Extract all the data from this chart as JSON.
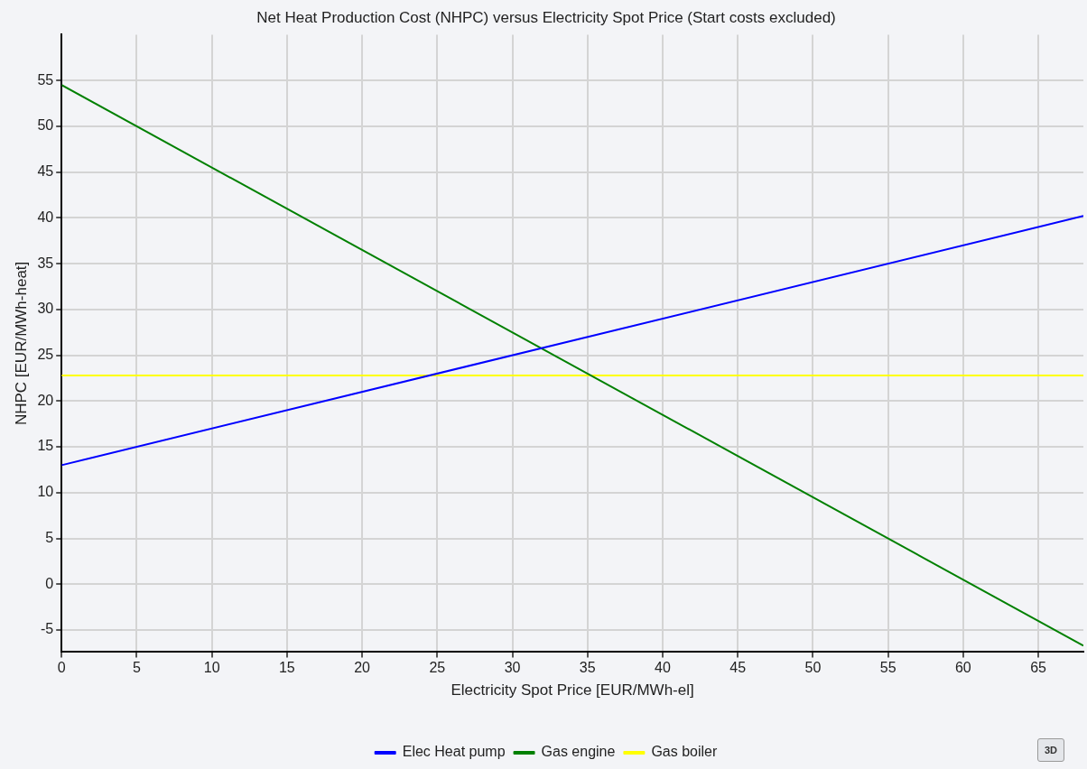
{
  "chart_data": {
    "type": "line",
    "title": "Net Heat Production Cost (NHPC) versus Electricity Spot Price (Start costs excluded)",
    "xlabel": "Electricity Spot Price [EUR/MWh-el]",
    "ylabel": "NHPC [EUR/MWh-heat]",
    "x": [
      0,
      68
    ],
    "series": [
      {
        "name": "Elec Heat pump",
        "color": "#0000ff",
        "values": [
          13,
          40.2
        ]
      },
      {
        "name": "Gas engine",
        "color": "#008000",
        "values": [
          54.5,
          -6.7
        ]
      },
      {
        "name": "Gas boiler",
        "color": "#ffff00",
        "values": [
          22.8,
          22.8
        ]
      }
    ],
    "xlim": [
      0,
      68
    ],
    "xticks": [
      0,
      5,
      10,
      15,
      20,
      25,
      30,
      35,
      40,
      45,
      50,
      55,
      60,
      65
    ],
    "ylim": [
      -7.4,
      60
    ],
    "yticks": [
      -5,
      0,
      5,
      10,
      15,
      20,
      25,
      30,
      35,
      40,
      45,
      50,
      55
    ],
    "grid": true,
    "legend": "bottom",
    "marker": "none",
    "line_style": "solid",
    "annotations": [
      "3D"
    ]
  }
}
